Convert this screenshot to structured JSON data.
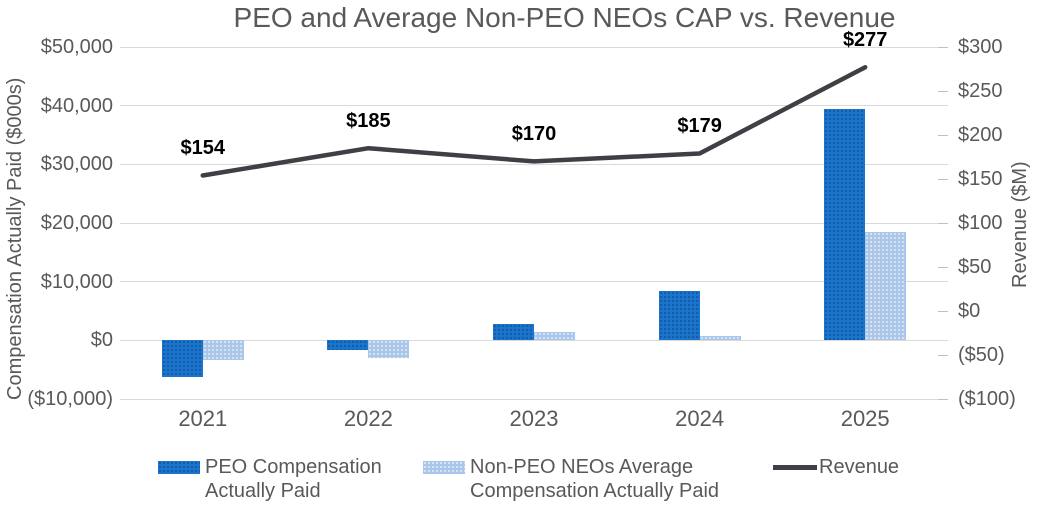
{
  "title": "PEO and Average Non-PEO NEOs CAP vs. Revenue",
  "chart_data": {
    "type": "bar+line combo",
    "categories": [
      "2021",
      "2022",
      "2023",
      "2024",
      "2025"
    ],
    "series": [
      {
        "name": "PEO Compensation Actually Paid",
        "type": "bar",
        "axis": "left",
        "color": "#1B75CC",
        "values": [
          -6200,
          -1700,
          2800,
          8400,
          39400
        ]
      },
      {
        "name": "Non-PEO NEOs Average Compensation Actually Paid",
        "type": "bar",
        "axis": "left",
        "color": "#A9C5E8",
        "values": [
          -3400,
          -3000,
          1400,
          700,
          18400
        ]
      },
      {
        "name": "Revenue",
        "type": "line",
        "axis": "right",
        "color": "#3F3F46",
        "values": [
          154,
          185,
          170,
          179,
          277
        ],
        "labels": [
          "$154",
          "$185",
          "$170",
          "$179",
          "$277"
        ]
      }
    ],
    "left_axis": {
      "title": "Compensation Actually Paid ($000s)",
      "min": -10000,
      "max": 50000,
      "step": 10000,
      "tick_labels": [
        "$50,000",
        "$40,000",
        "$30,000",
        "$20,000",
        "$10,000",
        "$0",
        "($10,000)"
      ]
    },
    "right_axis": {
      "title": "Revenue ($M)",
      "min": -100,
      "max": 300,
      "step": 50,
      "tick_labels": [
        "$300",
        "$250",
        "$200",
        "$150",
        "$100",
        "$50",
        "$0",
        "($50)",
        "($100)"
      ]
    },
    "grid": true,
    "grid_color": "#D9D9D9",
    "legend_position": "bottom",
    "text_color": "#595959",
    "data_label_color": "#000000"
  }
}
